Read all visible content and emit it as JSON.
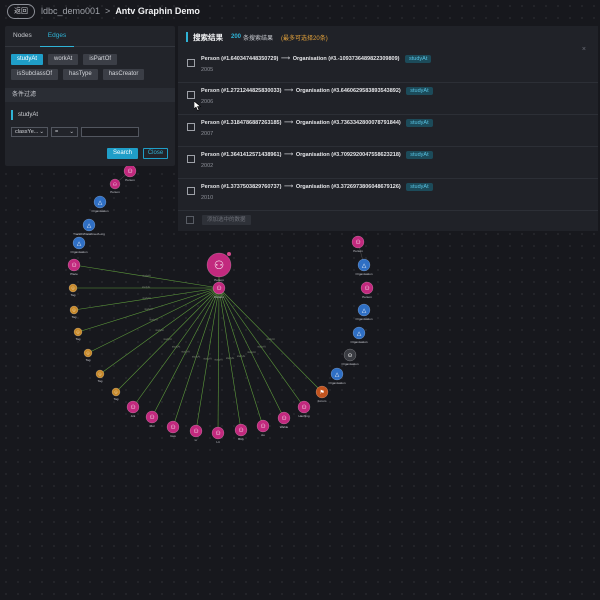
{
  "topbar": {
    "back_label": "返回",
    "breadcrumb_project": "ldbc_demo001",
    "breadcrumb_sep": ">",
    "breadcrumb_current": "Antv Graphin Demo"
  },
  "left_panel": {
    "tabs": [
      {
        "label": "Nodes",
        "active": false
      },
      {
        "label": "Edges",
        "active": true
      }
    ],
    "edge_types": [
      {
        "label": "studyAt",
        "selected": true
      },
      {
        "label": "workAt",
        "selected": false
      },
      {
        "label": "isPartOf",
        "selected": false
      },
      {
        "label": "isSubclassOf",
        "selected": false
      },
      {
        "label": "hasType",
        "selected": false
      },
      {
        "label": "hasCreator",
        "selected": false
      }
    ],
    "filter_header": "条件过滤",
    "filter_item": "studyAt",
    "field_select": "classYe...",
    "operator_select": "=",
    "value_input": "",
    "search_label": "Search",
    "close_label": "Close"
  },
  "results": {
    "title": "搜索结果",
    "count": "200",
    "count_label": "条搜索结果",
    "note": "(最多可选择20条)",
    "rows": [
      {
        "source": "Person (#1.640347448350729)",
        "target": "Organisation (#3.-1093736489822309809)",
        "tag": "studyAt",
        "year": "2005"
      },
      {
        "source": "Person (#1.2721244825830033)",
        "target": "Organisation (#3.6460629583893543892)",
        "tag": "studyAt",
        "year": "2006"
      },
      {
        "source": "Person (#1.3184786887263185)",
        "target": "Organisation (#3.7363342800078791844)",
        "tag": "studyAt",
        "year": "2007"
      },
      {
        "source": "Person (#1.3641412571438961)",
        "target": "Organisation (#3.7092920047558623218)",
        "tag": "studyAt",
        "year": "2002"
      },
      {
        "source": "Person (#1.3737503829760737)",
        "target": "Organisation (#3.3726973806048679126)",
        "tag": "studyAt",
        "year": "2010"
      }
    ],
    "footer_button": "添加选中的数据"
  },
  "colors": {
    "accent": "#1f9ec8",
    "person_node": "#c2297e",
    "org_node": "#2f6fc4",
    "tag_node": "#c7892a",
    "edge": "#5d9a3c"
  },
  "graph": {
    "edge_label": "studyAt",
    "node_labels": {
      "person": "Person",
      "org": "Organisation",
      "tag": "Tag",
      "place": "Place",
      "forum": "Forum",
      "hub": "Person",
      "top": "ActaBio",
      "tech": "TrackID/DataFree/A.org",
      "b1": "Ant",
      "b2": "Mol",
      "b3": "Gus",
      "b4": "Lr",
      "b5": "Lit",
      "b6": "Bldy",
      "b7": "Ao",
      "b8": "Wahle",
      "b9": "Hanfjing",
      "b10": "Pet"
    }
  }
}
